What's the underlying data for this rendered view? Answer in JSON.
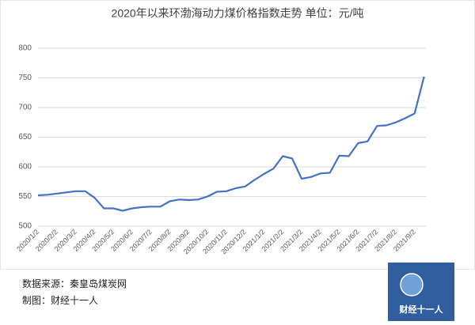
{
  "chart_data": {
    "type": "line",
    "title": "2020年以来环渤海动力煤价格指数走势   单位：元/吨",
    "categories": [
      "2020/1/2",
      null,
      "2020/2/2",
      null,
      "2020/3/2",
      null,
      "2020/4/2",
      null,
      "2020/5/2",
      null,
      "2020/6/2",
      null,
      "2020/7/2",
      null,
      "2020/8/2",
      null,
      "2020/9/2",
      null,
      "2020/10/2",
      null,
      "2020/11/2",
      null,
      "2020/12/2",
      null,
      "2021/1/2",
      null,
      "2021/2/2",
      null,
      "2021/3/2",
      null,
      "2021/4/2",
      null,
      "2021/5/2",
      null,
      "2021/6/2",
      null,
      "2021/7/2",
      null,
      "2021/8/2",
      null,
      "2021/9/2",
      null
    ],
    "series": [
      {
        "name": "环渤海动力煤价格指数",
        "color": "#4472c4",
        "values": [
          552,
          553,
          555,
          557,
          559,
          559,
          548,
          530,
          530,
          526,
          530,
          532,
          533,
          533,
          542,
          545,
          544,
          545,
          550,
          558,
          559,
          564,
          567,
          578,
          588,
          597,
          618,
          614,
          580,
          583,
          589,
          590,
          619,
          618,
          640,
          643,
          669,
          670,
          675,
          682,
          690,
          752
        ]
      }
    ],
    "ylim": [
      500,
      800
    ],
    "yticks": [
      500,
      550,
      600,
      650,
      700,
      750,
      800
    ],
    "grid": true
  },
  "footer": {
    "source": "数据来源：秦皇岛煤炭网",
    "credit": "制图：财经十一人"
  },
  "logo": {
    "text": "财经十一人"
  }
}
